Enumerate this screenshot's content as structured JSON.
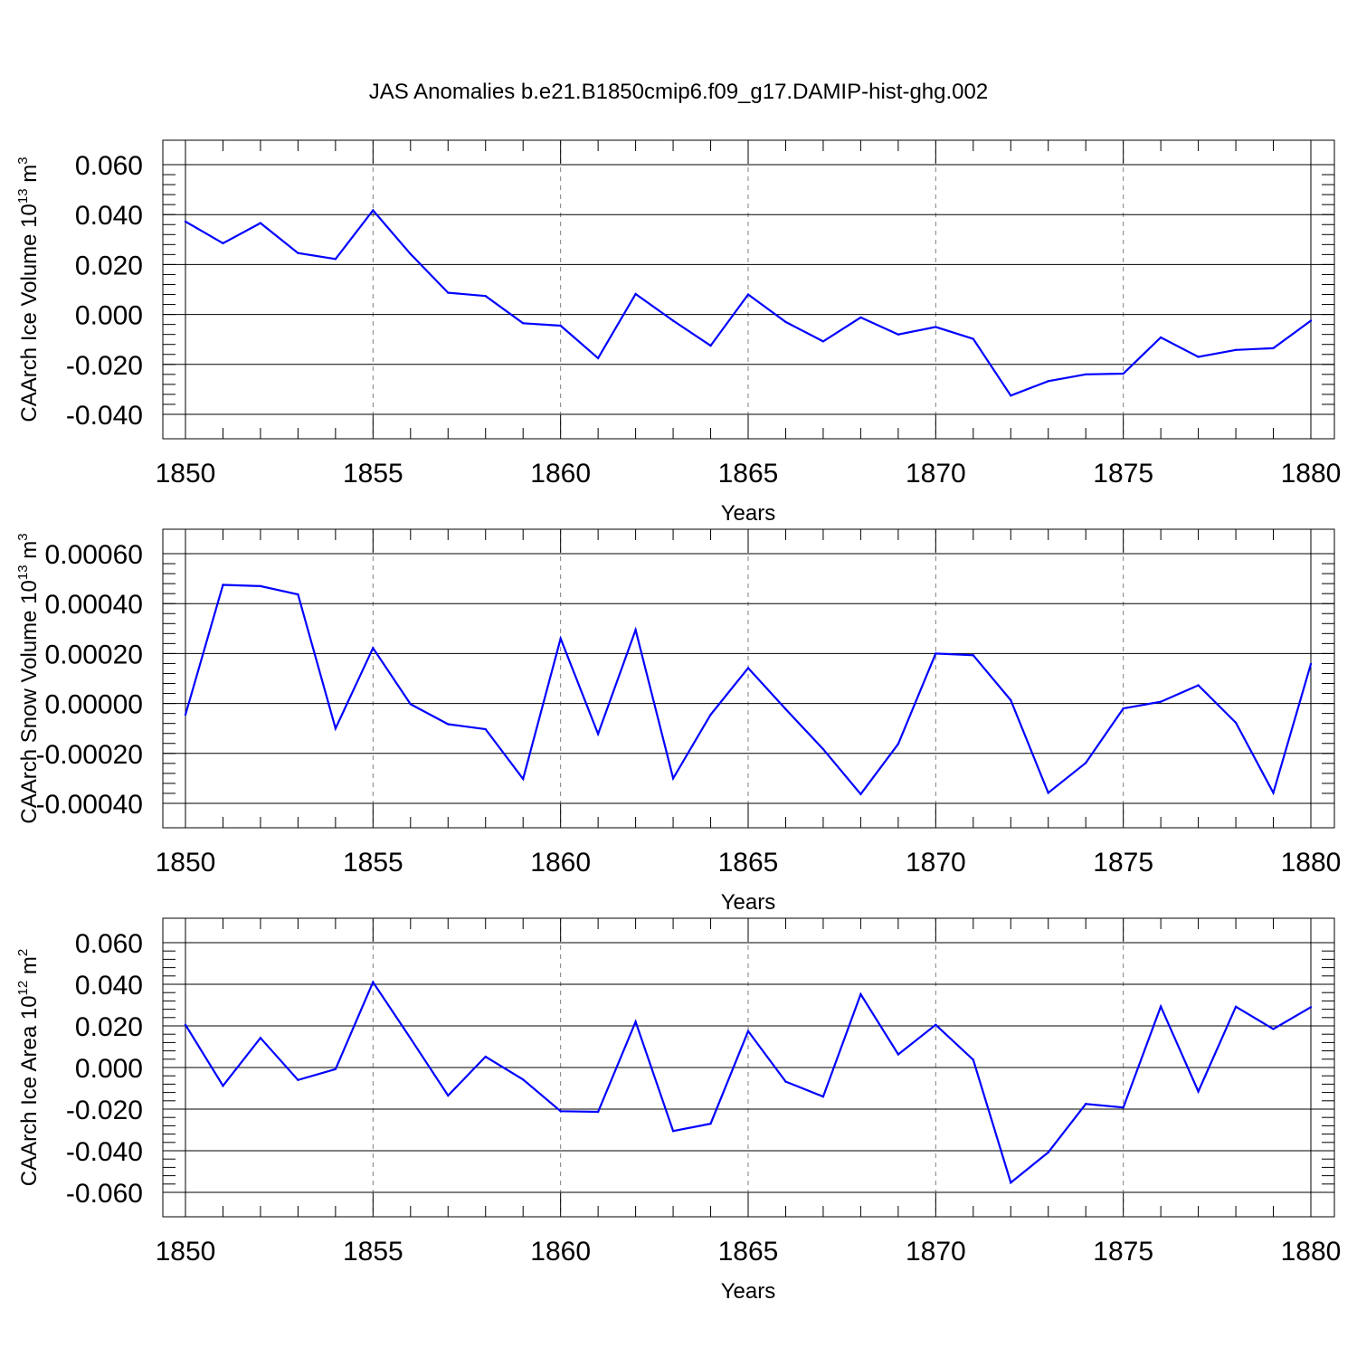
{
  "title": "JAS Anomalies b.e21.B1850cmip6.f09_g17.DAMIP-hist-ghg.002",
  "colors": {
    "series": "#0000ff",
    "axis": "#000000",
    "grid": "#7f7f7f",
    "background": "#ffffff"
  },
  "chart_data": [
    {
      "type": "line",
      "ylabel": "CAArch Ice Volume 10",
      "ylabel_sup": "13",
      "ylabel_unit": " m",
      "ylabel_unit_sup": "3",
      "xlabel": "Years",
      "xlim": [
        1850,
        1880
      ],
      "ylim": [
        -0.04,
        0.07
      ],
      "x_ticks": [
        "1850",
        "1855",
        "1860",
        "1865",
        "1870",
        "1875",
        "1880"
      ],
      "y_ticks": [
        {
          "value": -0.04,
          "label": "-0.040"
        },
        {
          "value": -0.02,
          "label": "-0.020"
        },
        {
          "value": 0.0,
          "label": "0.000"
        },
        {
          "value": 0.02,
          "label": "0.020"
        },
        {
          "value": 0.04,
          "label": "0.040"
        },
        {
          "value": 0.06,
          "label": "0.060"
        }
      ],
      "grid": "dashed vertical at major x ticks",
      "x": [
        1850,
        1851,
        1852,
        1853,
        1854,
        1855,
        1856,
        1857,
        1858,
        1859,
        1860,
        1861,
        1862,
        1863,
        1864,
        1865,
        1866,
        1867,
        1868,
        1869,
        1870,
        1871,
        1872,
        1873,
        1874,
        1875,
        1876,
        1877,
        1878,
        1879,
        1880
      ],
      "values": [
        0.0372,
        0.0285,
        0.0366,
        0.0246,
        0.0222,
        0.0417,
        0.0242,
        0.0087,
        0.0074,
        -0.0035,
        -0.0045,
        -0.0175,
        0.0082,
        -0.0025,
        -0.0125,
        0.008,
        -0.003,
        -0.0108,
        -0.0012,
        -0.008,
        -0.005,
        -0.0098,
        -0.0325,
        -0.0267,
        -0.024,
        -0.0237,
        -0.0092,
        -0.017,
        -0.0142,
        -0.0135,
        -0.0025
      ]
    },
    {
      "type": "line",
      "ylabel": "CAArch Snow Volume 10",
      "ylabel_sup": "13",
      "ylabel_unit": " m",
      "ylabel_unit_sup": "3",
      "xlabel": "Years",
      "xlim": [
        1850,
        1880
      ],
      "ylim": [
        -0.0004,
        0.0007
      ],
      "x_ticks": [
        "1850",
        "1855",
        "1860",
        "1865",
        "1870",
        "1875",
        "1880"
      ],
      "y_ticks": [
        {
          "value": -0.0004,
          "label": "-0.00040"
        },
        {
          "value": -0.0002,
          "label": "-0.00020"
        },
        {
          "value": 0.0,
          "label": "0.00000"
        },
        {
          "value": 0.0002,
          "label": "0.00020"
        },
        {
          "value": 0.0004,
          "label": "0.00040"
        },
        {
          "value": 0.0006,
          "label": "0.00060"
        }
      ],
      "grid": "dashed vertical at major x ticks",
      "x": [
        1850,
        1851,
        1852,
        1853,
        1854,
        1855,
        1856,
        1857,
        1858,
        1859,
        1860,
        1861,
        1862,
        1863,
        1864,
        1865,
        1866,
        1867,
        1868,
        1869,
        1870,
        1871,
        1872,
        1873,
        1874,
        1875,
        1876,
        1877,
        1878,
        1879,
        1880
      ],
      "values": [
        -4.5e-05,
        0.000475,
        0.00047,
        0.000437,
        -0.0001,
        0.000222,
        -3e-06,
        -8.3e-05,
        -0.000103,
        -0.000302,
        0.00026,
        -0.000122,
        0.000295,
        -0.0003,
        -4.5e-05,
        0.000142,
        -2.3e-05,
        -0.000183,
        -0.000363,
        -0.000162,
        0.0002,
        0.000193,
        1.3e-05,
        -0.000358,
        -0.000238,
        -2e-05,
        7e-06,
        7.3e-05,
        -7.7e-05,
        -0.000358,
        0.000158
      ]
    },
    {
      "type": "line",
      "ylabel": "CAArch Ice Area 10",
      "ylabel_sup": "12",
      "ylabel_unit": " m",
      "ylabel_unit_sup": "2",
      "xlabel": "Years",
      "xlim": [
        1850,
        1880
      ],
      "ylim": [
        -0.06,
        0.06
      ],
      "x_ticks": [
        "1850",
        "1855",
        "1860",
        "1865",
        "1870",
        "1875",
        "1880"
      ],
      "y_ticks": [
        {
          "value": -0.06,
          "label": "-0.060"
        },
        {
          "value": -0.04,
          "label": "-0.040"
        },
        {
          "value": -0.02,
          "label": "-0.020"
        },
        {
          "value": 0.0,
          "label": "0.000"
        },
        {
          "value": 0.02,
          "label": "0.020"
        },
        {
          "value": 0.04,
          "label": "0.040"
        },
        {
          "value": 0.06,
          "label": "0.060"
        }
      ],
      "grid": "dashed vertical at major x ticks",
      "x": [
        1850,
        1851,
        1852,
        1853,
        1854,
        1855,
        1856,
        1857,
        1858,
        1859,
        1860,
        1861,
        1862,
        1863,
        1864,
        1865,
        1866,
        1867,
        1868,
        1869,
        1870,
        1871,
        1872,
        1873,
        1874,
        1875,
        1876,
        1877,
        1878,
        1879,
        1880
      ],
      "values": [
        0.0205,
        -0.0088,
        0.0142,
        -0.006,
        -0.0008,
        0.041,
        0.014,
        -0.0135,
        0.0052,
        -0.0058,
        -0.021,
        -0.0213,
        0.022,
        -0.0305,
        -0.027,
        0.0175,
        -0.0068,
        -0.014,
        0.0352,
        0.0063,
        0.0205,
        0.0037,
        -0.0553,
        -0.0408,
        -0.0175,
        -0.0192,
        0.0293,
        -0.0115,
        0.0292,
        0.0185,
        0.029
      ]
    }
  ]
}
